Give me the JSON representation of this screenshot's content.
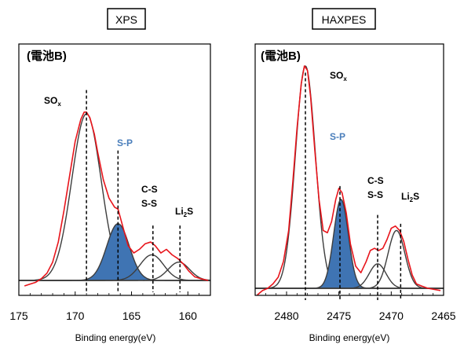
{
  "chart_data": [
    {
      "type": "line",
      "title": "XPS",
      "sample_label": "(電池B)",
      "xlabel": "Binding energy(eV)",
      "ylabel": "",
      "xlim": [
        175,
        158
      ],
      "x_ticks": [
        "175",
        "170",
        "165",
        "160"
      ],
      "x_tick_values": [
        175,
        170,
        165,
        160
      ],
      "grid": false,
      "measured_color": "#e8141b",
      "component_color": "#3d3d3d",
      "fill_color": "#3f74b3",
      "peaks": [
        {
          "name": "SOx",
          "label_main": "SO",
          "label_sub": "x",
          "center": 169.0,
          "height": 0.91,
          "width": 1.3,
          "filled": false
        },
        {
          "name": "S-P",
          "label": "S-P",
          "center": 166.2,
          "height": 0.31,
          "width": 1.0,
          "filled": true,
          "label_color": "#4a7ebb"
        },
        {
          "name": "C-S / S-S",
          "label_line1": "C-S",
          "label_line2": "S-S",
          "center": 163.2,
          "height": 0.14,
          "width": 1.05,
          "filled": false
        },
        {
          "name": "Li2S",
          "label_main": "Li",
          "label_sub": "2",
          "label_tail": "S",
          "center": 160.8,
          "height": 0.1,
          "width": 0.95,
          "filled": false
        }
      ],
      "dashed_markers": [
        169.0,
        166.2,
        163.1,
        160.7
      ],
      "dashed_tops": [
        1.04,
        0.71,
        0.3,
        0.3
      ],
      "measured": [
        [
          174.5,
          -0.03
        ],
        [
          174,
          -0.02
        ],
        [
          173.5,
          -0.01
        ],
        [
          173,
          0.01
        ],
        [
          172.5,
          0.04
        ],
        [
          172,
          0.1
        ],
        [
          171.5,
          0.21
        ],
        [
          171,
          0.38
        ],
        [
          170.5,
          0.57
        ],
        [
          170,
          0.76
        ],
        [
          169.5,
          0.88
        ],
        [
          169.2,
          0.92
        ],
        [
          169,
          0.92
        ],
        [
          168.7,
          0.89
        ],
        [
          168.3,
          0.8
        ],
        [
          168,
          0.7
        ],
        [
          167.5,
          0.55
        ],
        [
          167,
          0.45
        ],
        [
          166.5,
          0.4
        ],
        [
          166.2,
          0.39
        ],
        [
          165.8,
          0.3
        ],
        [
          165.3,
          0.19
        ],
        [
          164.8,
          0.15
        ],
        [
          164.3,
          0.17
        ],
        [
          163.8,
          0.2
        ],
        [
          163.3,
          0.21
        ],
        [
          162.9,
          0.19
        ],
        [
          162.4,
          0.15
        ],
        [
          161.9,
          0.17
        ],
        [
          161.4,
          0.14
        ],
        [
          160.9,
          0.12
        ],
        [
          160.4,
          0.09
        ],
        [
          159.9,
          0.05
        ],
        [
          159.4,
          0.02
        ],
        [
          158.9,
          0.01
        ],
        [
          158.2,
          0.0
        ]
      ]
    },
    {
      "type": "line",
      "title": "HAXPES",
      "sample_label": "(電池B)",
      "xlabel": "Binding energy(eV)",
      "ylabel": "",
      "xlim": [
        2483,
        2465
      ],
      "x_ticks": [
        "2480",
        "2475",
        "2470",
        "2465"
      ],
      "x_tick_values": [
        2480,
        2475,
        2470,
        2465
      ],
      "grid": false,
      "measured_color": "#e8141b",
      "component_color": "#3d3d3d",
      "fill_color": "#3f74b3",
      "peaks": [
        {
          "name": "SOx",
          "label_main": "SO",
          "label_sub": "x",
          "center": 2478.2,
          "height": 1.0,
          "width": 0.95,
          "filled": false
        },
        {
          "name": "S-P",
          "label": "S-P",
          "center": 2474.8,
          "height": 0.4,
          "width": 0.7,
          "filled": true,
          "label_color": "#4a7ebb"
        },
        {
          "name": "C-S / S-S",
          "label_line1": "C-S",
          "label_line2": "S-S",
          "center": 2471.3,
          "height": 0.11,
          "width": 0.8,
          "filled": false
        },
        {
          "name": "Li2S",
          "label_main": "Li",
          "label_sub": "2",
          "label_tail": "S",
          "center": 2469.5,
          "height": 0.26,
          "width": 0.8,
          "filled": false
        }
      ],
      "dashed_markers": [
        2478.2,
        2474.9,
        2471.3,
        2469.1
      ],
      "dashed_tops": [
        0.97,
        0.46,
        0.33,
        0.29
      ],
      "measured": [
        [
          2482.8,
          -0.03
        ],
        [
          2482.3,
          -0.01
        ],
        [
          2481.8,
          0.0
        ],
        [
          2481.3,
          0.02
        ],
        [
          2480.8,
          0.05
        ],
        [
          2480.3,
          0.12
        ],
        [
          2479.8,
          0.26
        ],
        [
          2479.4,
          0.48
        ],
        [
          2479,
          0.72
        ],
        [
          2478.6,
          0.92
        ],
        [
          2478.3,
          1.0
        ],
        [
          2478,
          0.98
        ],
        [
          2477.7,
          0.86
        ],
        [
          2477.3,
          0.62
        ],
        [
          2476.9,
          0.4
        ],
        [
          2476.5,
          0.26
        ],
        [
          2476.1,
          0.25
        ],
        [
          2475.7,
          0.3
        ],
        [
          2475.3,
          0.4
        ],
        [
          2475,
          0.45
        ],
        [
          2474.7,
          0.43
        ],
        [
          2474.3,
          0.34
        ],
        [
          2473.9,
          0.2
        ],
        [
          2473.4,
          0.1
        ],
        [
          2472.9,
          0.07
        ],
        [
          2472.4,
          0.12
        ],
        [
          2472,
          0.17
        ],
        [
          2471.6,
          0.18
        ],
        [
          2471.2,
          0.17
        ],
        [
          2470.8,
          0.18
        ],
        [
          2470.4,
          0.22
        ],
        [
          2470.0,
          0.27
        ],
        [
          2469.6,
          0.28
        ],
        [
          2469.2,
          0.26
        ],
        [
          2468.8,
          0.21
        ],
        [
          2468.4,
          0.13
        ],
        [
          2468.0,
          0.06
        ],
        [
          2467.6,
          0.02
        ],
        [
          2467.1,
          0.01
        ],
        [
          2466.5,
          0.0
        ],
        [
          2465.3,
          -0.01
        ]
      ]
    }
  ]
}
